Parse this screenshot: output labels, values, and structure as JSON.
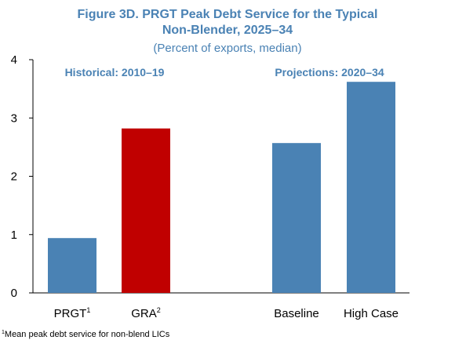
{
  "title_line1": "Figure 3D. PRGT Peak Debt Service for the Typical",
  "title_line2": "Non-Blender, 2025–34",
  "subtitle": "(Percent of exports, median)",
  "footnote": {
    "marker": "1",
    "text": "Mean peak debt service for non-blend LICs"
  },
  "chart_data": {
    "type": "bar",
    "ylim": [
      0,
      4
    ],
    "yticks": [
      0,
      1,
      2,
      3,
      4
    ],
    "groups": [
      {
        "label": "Historical: 2010–19",
        "color": "#4a82b4"
      },
      {
        "label": "Projections: 2020–34",
        "color": "#4a82b4"
      }
    ],
    "bars": [
      {
        "label": "PRGT",
        "sup": "1",
        "value": 0.94,
        "color": "#4a82b4"
      },
      {
        "label": "GRA",
        "sup": "2",
        "value": 2.82,
        "color": "#c00000"
      },
      {
        "label": "Baseline",
        "sup": "",
        "value": 2.57,
        "color": "#4a82b4"
      },
      {
        "label": "High Case",
        "sup": "",
        "value": 3.62,
        "color": "#4a82b4"
      }
    ]
  }
}
